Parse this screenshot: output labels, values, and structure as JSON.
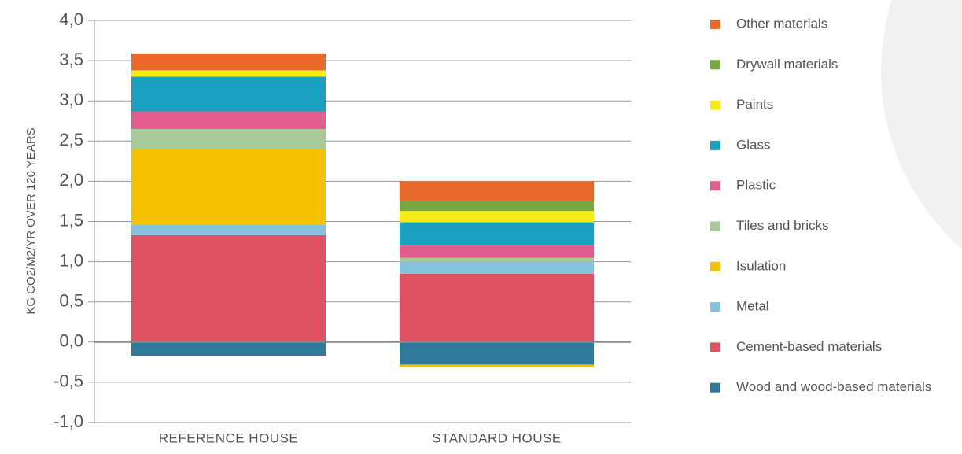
{
  "chart_data": {
    "type": "stacked-bar",
    "y_axis_label": "KG CO2/M2/YR OVER 120 YEARS",
    "categories": [
      "REFERENCE HOUSE",
      "STANDARD HOUSE"
    ],
    "series": [
      {
        "name": "Wood and wood-based materials",
        "color": "#2f7a9b",
        "values": [
          -0.17,
          -0.28
        ]
      },
      {
        "name": "Cement-based materials",
        "color": "#e05262",
        "values": [
          1.33,
          0.85
        ]
      },
      {
        "name": "Metal",
        "color": "#85c2de",
        "values": [
          0.13,
          0.15
        ]
      },
      {
        "name": "Isulation",
        "color": "#f5c200",
        "values": [
          0.94,
          -0.03
        ]
      },
      {
        "name": "Tiles and bricks",
        "color": "#a7cb98",
        "values": [
          0.25,
          0.05
        ]
      },
      {
        "name": "Plastic",
        "color": "#e45d8c",
        "values": [
          0.22,
          0.15
        ]
      },
      {
        "name": "Glass",
        "color": "#1aa0c0",
        "values": [
          0.43,
          0.29
        ]
      },
      {
        "name": "Paints",
        "color": "#f7ec13",
        "values": [
          0.08,
          0.14
        ]
      },
      {
        "name": "Drywall materials",
        "color": "#78a640",
        "values": [
          0,
          0.12
        ]
      },
      {
        "name": "Other materials",
        "color": "#e8692a",
        "values": [
          0.21,
          0.25
        ]
      }
    ],
    "ylim": [
      -1,
      4
    ],
    "yticks": [
      {
        "value": -1,
        "label": "-1,0"
      },
      {
        "value": -0.5,
        "label": "-0,5"
      },
      {
        "value": 0,
        "label": "0,0"
      },
      {
        "value": 0.5,
        "label": "0,5"
      },
      {
        "value": 1,
        "label": "1,0"
      },
      {
        "value": 1.5,
        "label": "1,5"
      },
      {
        "value": 2,
        "label": "2,0"
      },
      {
        "value": 2.5,
        "label": "2,5"
      },
      {
        "value": 3,
        "label": "3,0"
      },
      {
        "value": 3.5,
        "label": "3,5"
      },
      {
        "value": 4,
        "label": "4,0"
      }
    ],
    "grid": true
  }
}
